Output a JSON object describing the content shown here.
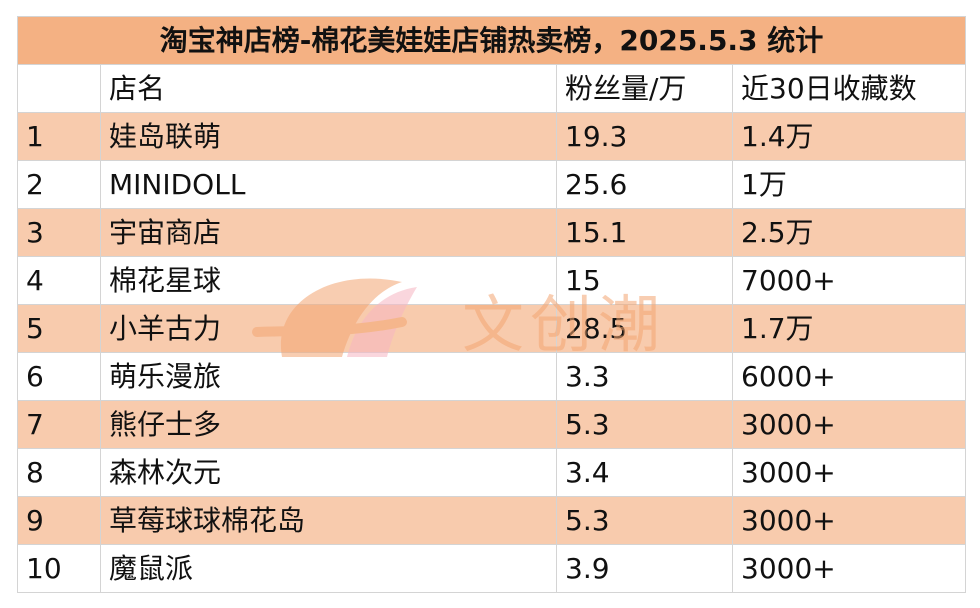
{
  "title": "淘宝神店榜-棉花美娃娃店铺热卖榜，2025.5.3 统计",
  "headers": [
    "",
    "店名",
    "粉丝量/万",
    "近30日收藏数"
  ],
  "rows": [
    [
      "1",
      "娃岛联萌",
      "19.3",
      "1.4万"
    ],
    [
      "2",
      "MINIDOLL",
      "25.6",
      "1万"
    ],
    [
      "3",
      "宇宙商店",
      "15.1",
      "2.5万"
    ],
    [
      "4",
      "棉花星球",
      "15",
      "7000+"
    ],
    [
      "5",
      "小羊古力",
      "28.5",
      "1.7万"
    ],
    [
      "6",
      "萌乐漫旅",
      "3.3",
      "6000+"
    ],
    [
      "7",
      "熊仔士多",
      "5.3",
      "3000+"
    ],
    [
      "8",
      "森林次元",
      "3.4",
      "3000+"
    ],
    [
      "9",
      "草莓球球棉花岛",
      "5.3",
      "3000+"
    ],
    [
      "10",
      "魔鼠派",
      "3.9",
      "3000+"
    ]
  ],
  "watermark": {
    "text": "文创潮",
    "icon": "leaf-logo-icon"
  },
  "colors": {
    "title_bg": "#f4b183",
    "stripe_bg": "#f8cbad",
    "border": "#d4d4d4"
  }
}
